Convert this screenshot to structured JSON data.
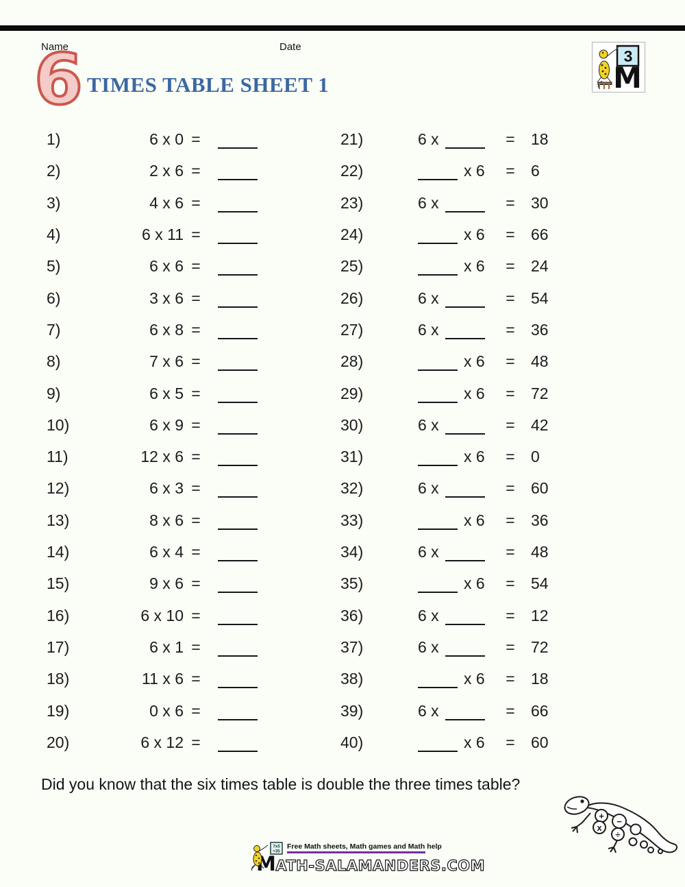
{
  "page": {
    "background": "#fbfdf7"
  },
  "header": {
    "name_label": "Name",
    "date_label": "Date",
    "big_number": "6",
    "title": "TIMES TABLE SHEET 1",
    "accent_red": "#cb584f",
    "accent_blue": "#3a68a2",
    "badge_number": "3",
    "badge_letter": "M"
  },
  "problems": {
    "left": [
      {
        "num": "1)",
        "expr": "6 x 0",
        "eq": "=",
        "blank": "____"
      },
      {
        "num": "2)",
        "expr": "2 x 6",
        "eq": "=",
        "blank": "____"
      },
      {
        "num": "3)",
        "expr": "4 x 6",
        "eq": "=",
        "blank": "____"
      },
      {
        "num": "4)",
        "expr": "6 x 11",
        "eq": "=",
        "blank": "____"
      },
      {
        "num": "5)",
        "expr": "6 x 6",
        "eq": "=",
        "blank": "____"
      },
      {
        "num": "6)",
        "expr": "3 x 6",
        "eq": "=",
        "blank": "____"
      },
      {
        "num": "7)",
        "expr": "6 x 8",
        "eq": "=",
        "blank": "____"
      },
      {
        "num": "8)",
        "expr": "7 x 6",
        "eq": "=",
        "blank": "____"
      },
      {
        "num": "9)",
        "expr": "6 x 5",
        "eq": "=",
        "blank": "____"
      },
      {
        "num": "10)",
        "expr": "6 x 9",
        "eq": "=",
        "blank": "____"
      },
      {
        "num": "11)",
        "expr": "12 x 6",
        "eq": "=",
        "blank": "____"
      },
      {
        "num": "12)",
        "expr": "6 x 3",
        "eq": "=",
        "blank": "____"
      },
      {
        "num": "13)",
        "expr": "8 x 6",
        "eq": "=",
        "blank": "____"
      },
      {
        "num": "14)",
        "expr": "6 x 4",
        "eq": "=",
        "blank": "____"
      },
      {
        "num": "15)",
        "expr": "9 x 6",
        "eq": "=",
        "blank": "____"
      },
      {
        "num": "16)",
        "expr": "6 x 10",
        "eq": "=",
        "blank": "____"
      },
      {
        "num": "17)",
        "expr": "6 x 1",
        "eq": "=",
        "blank": "____"
      },
      {
        "num": "18)",
        "expr": "11 x 6",
        "eq": "=",
        "blank": "____"
      },
      {
        "num": "19)",
        "expr": "0 x 6",
        "eq": "=",
        "blank": "____"
      },
      {
        "num": "20)",
        "expr": "6 x 12",
        "eq": "=",
        "blank": "____"
      }
    ],
    "right": [
      {
        "num": "21)",
        "pre": "6 x",
        "post": "",
        "blank": "____",
        "eq": "=",
        "answer": "18"
      },
      {
        "num": "22)",
        "pre": "",
        "post": "x 6",
        "blank": "____",
        "eq": "=",
        "answer": "6"
      },
      {
        "num": "23)",
        "pre": "6 x",
        "post": "",
        "blank": "____",
        "eq": "=",
        "answer": "30"
      },
      {
        "num": "24)",
        "pre": "",
        "post": "x 6",
        "blank": "____",
        "eq": "=",
        "answer": "66"
      },
      {
        "num": "25)",
        "pre": "",
        "post": "x 6",
        "blank": "____",
        "eq": "=",
        "answer": "24"
      },
      {
        "num": "26)",
        "pre": "6 x",
        "post": "",
        "blank": "____",
        "eq": "=",
        "answer": "54"
      },
      {
        "num": "27)",
        "pre": "6 x",
        "post": "",
        "blank": "____",
        "eq": "=",
        "answer": "36"
      },
      {
        "num": "28)",
        "pre": "",
        "post": "x 6",
        "blank": "____",
        "eq": "=",
        "answer": "48"
      },
      {
        "num": "29)",
        "pre": "",
        "post": "x 6",
        "blank": "____",
        "eq": "=",
        "answer": "72"
      },
      {
        "num": "30)",
        "pre": "6 x",
        "post": "",
        "blank": "____",
        "eq": "=",
        "answer": "42"
      },
      {
        "num": "31)",
        "pre": "",
        "post": "x 6",
        "blank": "____",
        "eq": "=",
        "answer": "0"
      },
      {
        "num": "32)",
        "pre": "6 x",
        "post": "",
        "blank": "____",
        "eq": "=",
        "answer": "60"
      },
      {
        "num": "33)",
        "pre": "",
        "post": "x 6",
        "blank": "____",
        "eq": "=",
        "answer": "36"
      },
      {
        "num": "34)",
        "pre": "6 x",
        "post": "",
        "blank": "____",
        "eq": "=",
        "answer": "48"
      },
      {
        "num": "35)",
        "pre": "",
        "post": "x 6",
        "blank": "____",
        "eq": "=",
        "answer": "54"
      },
      {
        "num": "36)",
        "pre": "6 x",
        "post": "",
        "blank": "____",
        "eq": "=",
        "answer": "12"
      },
      {
        "num": "37)",
        "pre": "6 x",
        "post": "",
        "blank": "____",
        "eq": "=",
        "answer": "72"
      },
      {
        "num": "38)",
        "pre": "",
        "post": "x 6",
        "blank": "____",
        "eq": "=",
        "answer": "18"
      },
      {
        "num": "39)",
        "pre": "6 x",
        "post": "",
        "blank": "____",
        "eq": "=",
        "answer": "66"
      },
      {
        "num": "40)",
        "pre": "",
        "post": "x 6",
        "blank": "____",
        "eq": "=",
        "answer": "60"
      }
    ]
  },
  "fact": "Did you know that the six times table is double the three times table?",
  "gecko": {
    "symbols": [
      "+",
      "x",
      "−",
      "÷"
    ]
  },
  "footer": {
    "tagline": "Free Math sheets, Math games and Math help",
    "wordmark_initial": "M",
    "wordmark_rest": "ATH-SALAMANDERS.COM",
    "board_line1": "7x5",
    "board_line2": "=35",
    "rule_color": "#7030a0"
  }
}
